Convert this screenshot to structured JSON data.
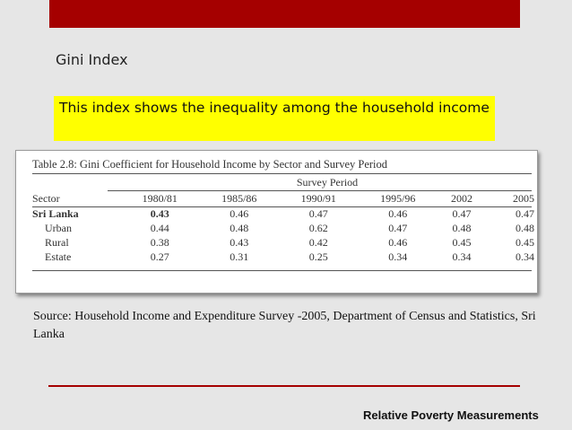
{
  "slide": {
    "title": "Gini Index",
    "highlight_text": "This index shows the inequality among the household income",
    "source_text": "Source: Household Income and Expenditure Survey -2005, Department of Census and Statistics, Sri Lanka",
    "footer": "Relative Poverty Measurements",
    "accent_color": "#a50000",
    "highlight_color": "#ffff00"
  },
  "table": {
    "caption": "Table 2.8: Gini Coefficient for Household Income by Sector and Survey Period",
    "survey_period_label": "Survey Period",
    "sector_label": "Sector",
    "periods": [
      "1980/81",
      "1985/86",
      "1990/91",
      "1995/96",
      "2002",
      "2005"
    ],
    "rows": [
      {
        "sector": "Sri Lanka",
        "values": [
          "0.43",
          "0.46",
          "0.47",
          "0.46",
          "0.47",
          "0.47"
        ]
      },
      {
        "sector": "Urban",
        "values": [
          "0.44",
          "0.48",
          "0.62",
          "0.47",
          "0.48",
          "0.48"
        ]
      },
      {
        "sector": "Rural",
        "values": [
          "0.38",
          "0.43",
          "0.42",
          "0.46",
          "0.45",
          "0.45"
        ]
      },
      {
        "sector": "Estate",
        "values": [
          "0.27",
          "0.31",
          "0.25",
          "0.34",
          "0.34",
          "0.34"
        ]
      }
    ]
  }
}
